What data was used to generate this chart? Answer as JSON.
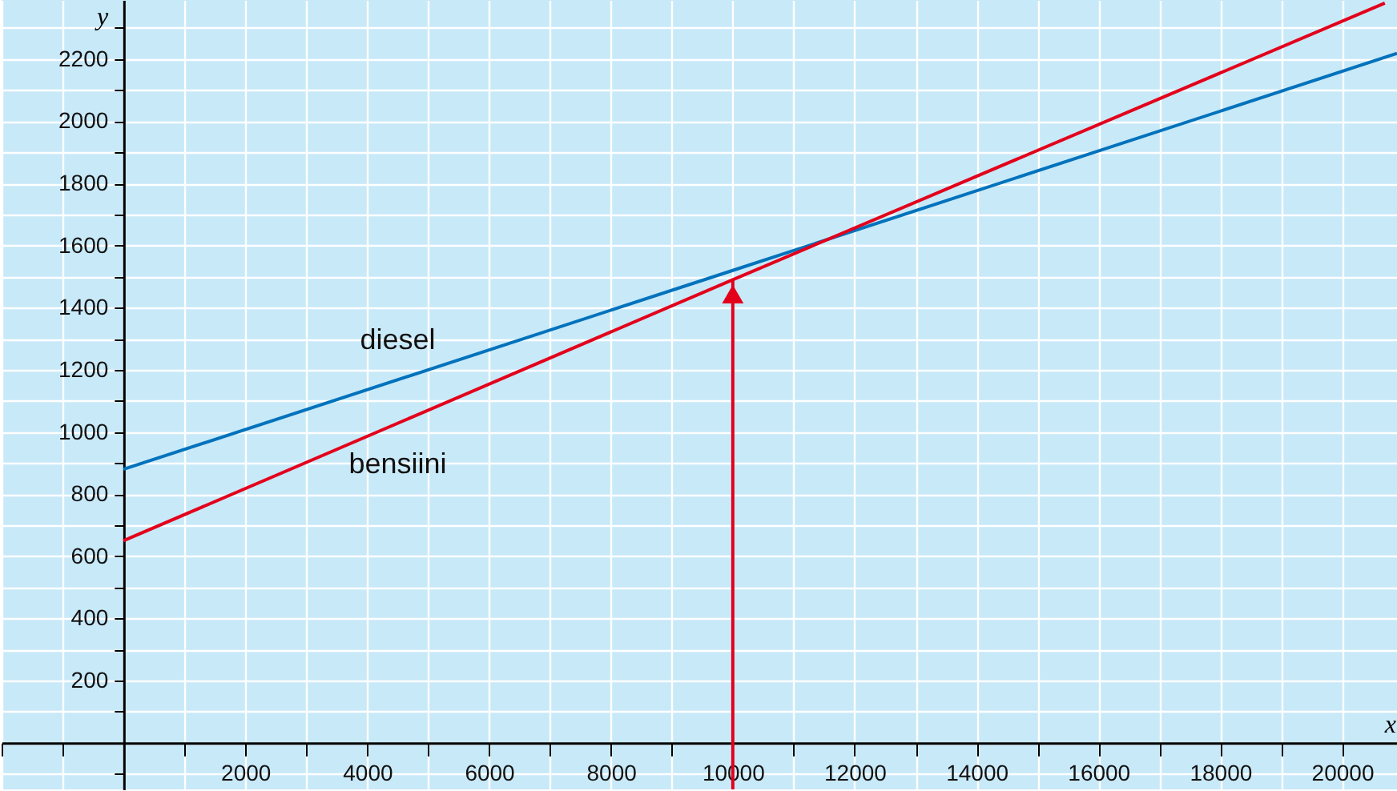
{
  "chart_data": {
    "type": "line",
    "xlabel": "x",
    "ylabel": "y",
    "xlim": [
      -2000,
      20900
    ],
    "ylim": [
      -150,
      2390
    ],
    "xticks": [
      {
        "value": -2000,
        "label": null
      },
      {
        "value": -1000,
        "label": null
      },
      {
        "value": 0,
        "label": null
      },
      {
        "value": 1000,
        "label": null
      },
      2000,
      {
        "value": 3000,
        "label": null
      },
      4000,
      {
        "value": 5000,
        "label": null
      },
      6000,
      {
        "value": 7000,
        "label": null
      },
      8000,
      {
        "value": 9000,
        "label": null
      },
      10000,
      {
        "value": 11000,
        "label": null
      },
      12000,
      {
        "value": 13000,
        "label": null
      },
      14000,
      {
        "value": 15000,
        "label": null
      },
      16000,
      {
        "value": 17000,
        "label": null
      },
      18000,
      {
        "value": 19000,
        "label": null
      },
      20000
    ],
    "yticks": [
      {
        "value": -100,
        "label": null
      },
      {
        "value": 0,
        "label": null
      },
      {
        "value": 100,
        "label": null
      },
      200,
      {
        "value": 300,
        "label": null
      },
      400,
      {
        "value": 500,
        "label": null
      },
      600,
      {
        "value": 700,
        "label": null
      },
      800,
      {
        "value": 900,
        "label": null
      },
      1000,
      {
        "value": 1100,
        "label": null
      },
      1200,
      {
        "value": 1300,
        "label": null
      },
      1400,
      {
        "value": 1500,
        "label": null
      },
      1600,
      {
        "value": 1700,
        "label": null
      },
      1800,
      {
        "value": 1900,
        "label": null
      },
      2000,
      {
        "value": 2100,
        "label": null
      },
      2200,
      {
        "value": 2300,
        "label": null
      }
    ],
    "grid": true,
    "legend": false,
    "series": [
      {
        "name": "diesel",
        "color": "#0072bc",
        "x": [
          0,
          10000,
          20900
        ],
        "values": [
          880,
          1520,
          2218
        ]
      },
      {
        "name": "bensiini",
        "color": "#e3001b",
        "x": [
          0,
          10000,
          20700
        ],
        "values": [
          650,
          1490,
          2380
        ]
      }
    ],
    "ref_lines": [
      {
        "axis": "x",
        "value": 10000,
        "color": "#e3001b"
      }
    ]
  }
}
